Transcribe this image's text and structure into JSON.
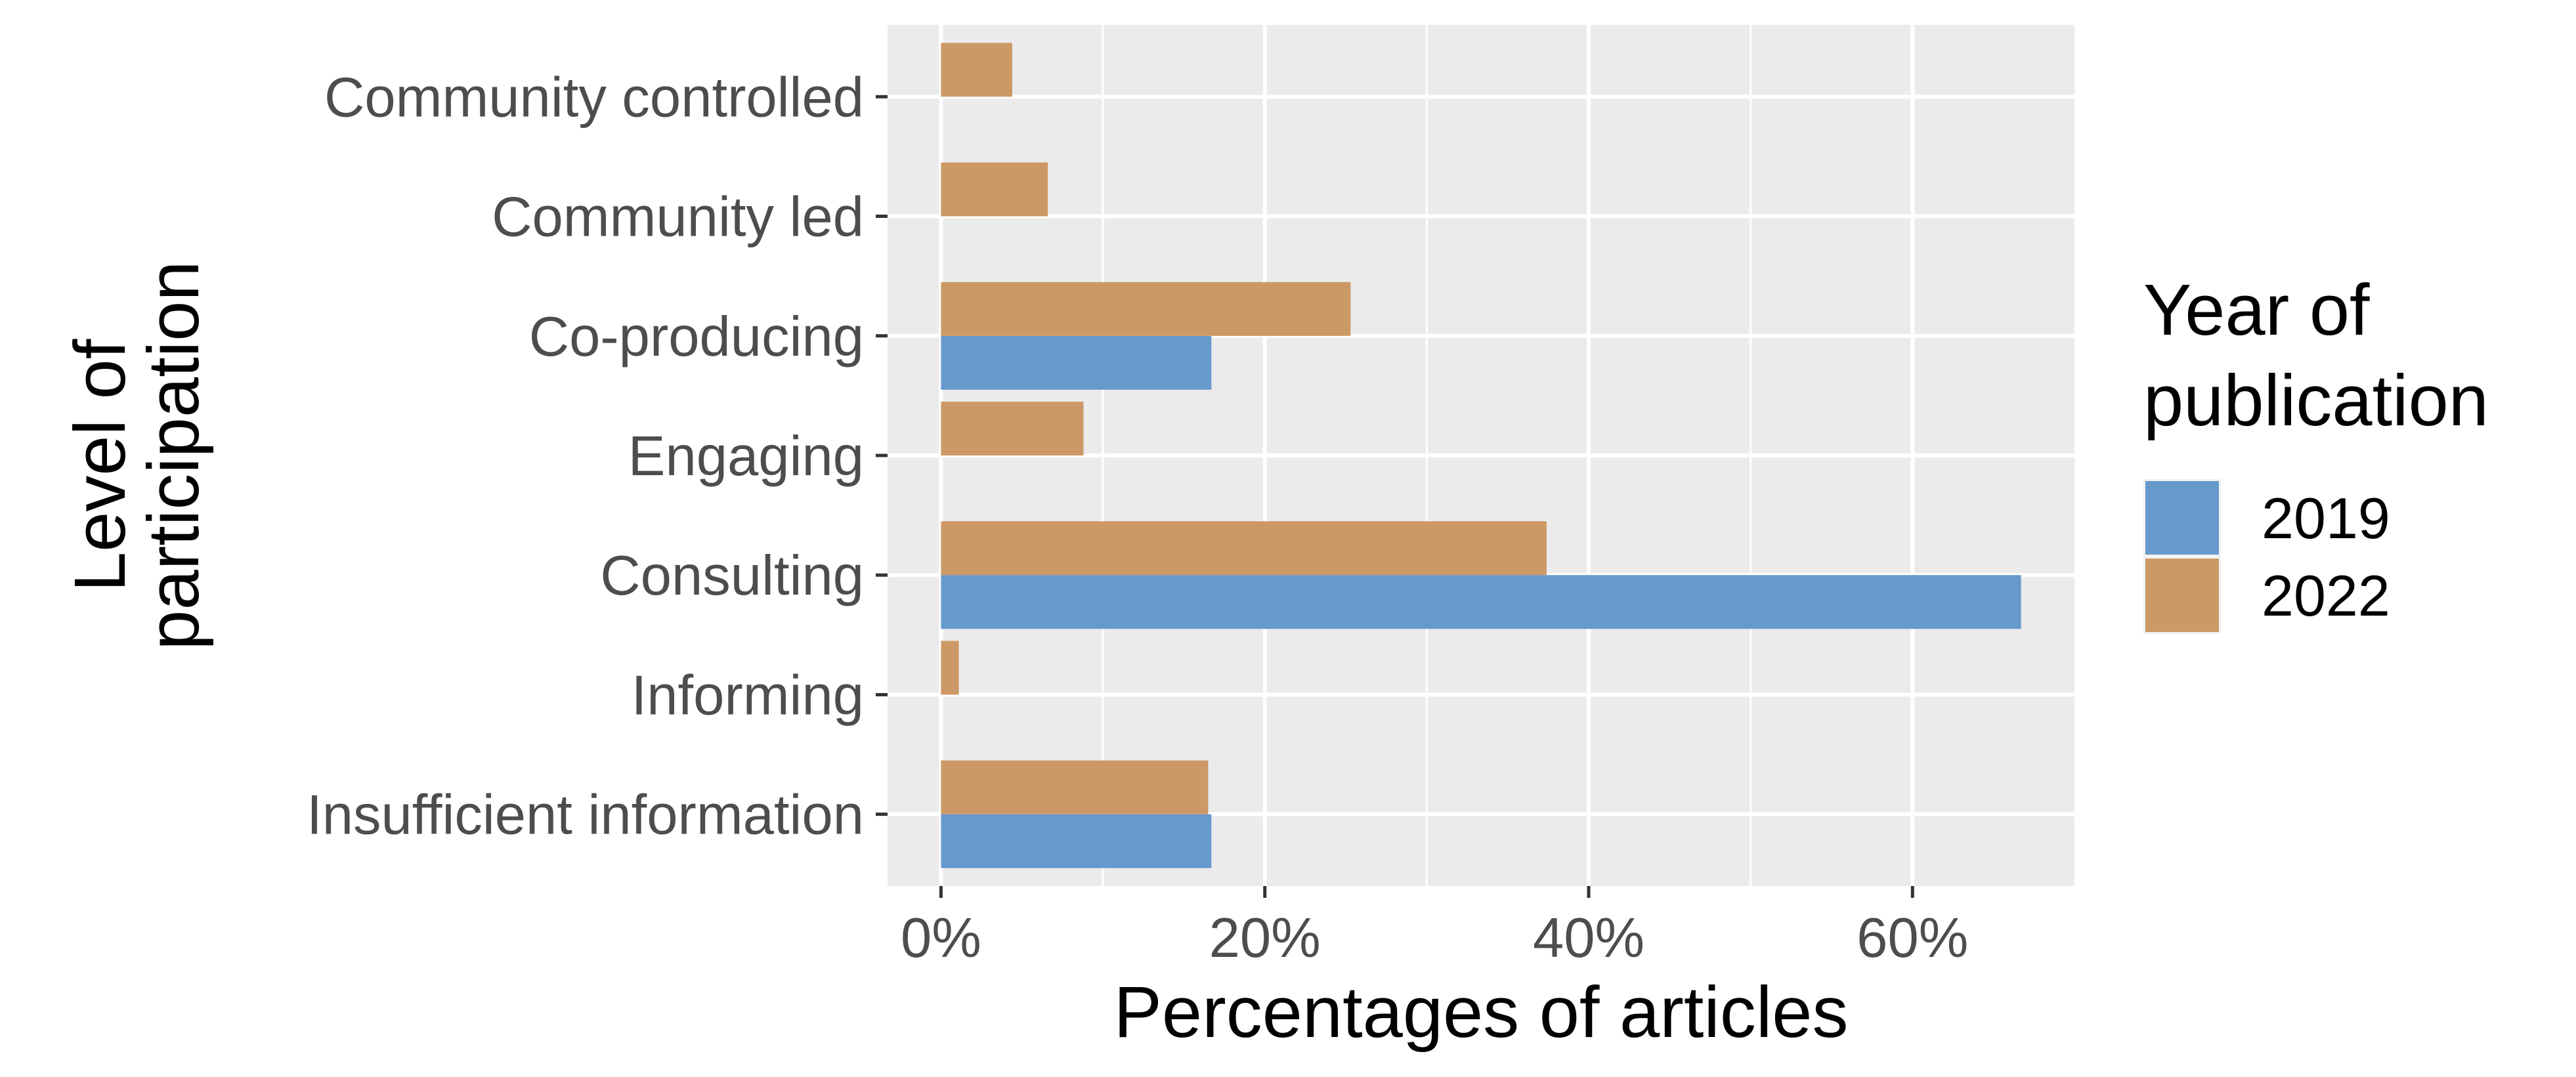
{
  "chart_data": {
    "type": "bar",
    "orientation": "horizontal",
    "title": "",
    "xlabel": "Percentages of articles",
    "ylabel_lines": [
      "Level of",
      "participation"
    ],
    "categories": [
      "Community controlled",
      "Community led",
      "Co-producing",
      "Engaging",
      "Consulting",
      "Informing",
      "Insufficient information"
    ],
    "series": [
      {
        "name": "2019",
        "color": "#6699CC",
        "values": [
          0,
          0,
          16.7,
          0,
          66.7,
          0,
          16.7
        ]
      },
      {
        "name": "2022",
        "color": "#CC9966",
        "values": [
          4.4,
          6.6,
          25.3,
          8.8,
          37.4,
          1.1,
          16.5
        ]
      }
    ],
    "xlim": [
      -3.3,
      70
    ],
    "x_ticks": [
      0,
      20,
      40,
      60
    ],
    "x_tick_labels": [
      "0%",
      "20%",
      "40%",
      "60%"
    ],
    "grid": true,
    "legend": {
      "title_lines": [
        "Year of",
        "publication"
      ],
      "placement": "right"
    }
  }
}
